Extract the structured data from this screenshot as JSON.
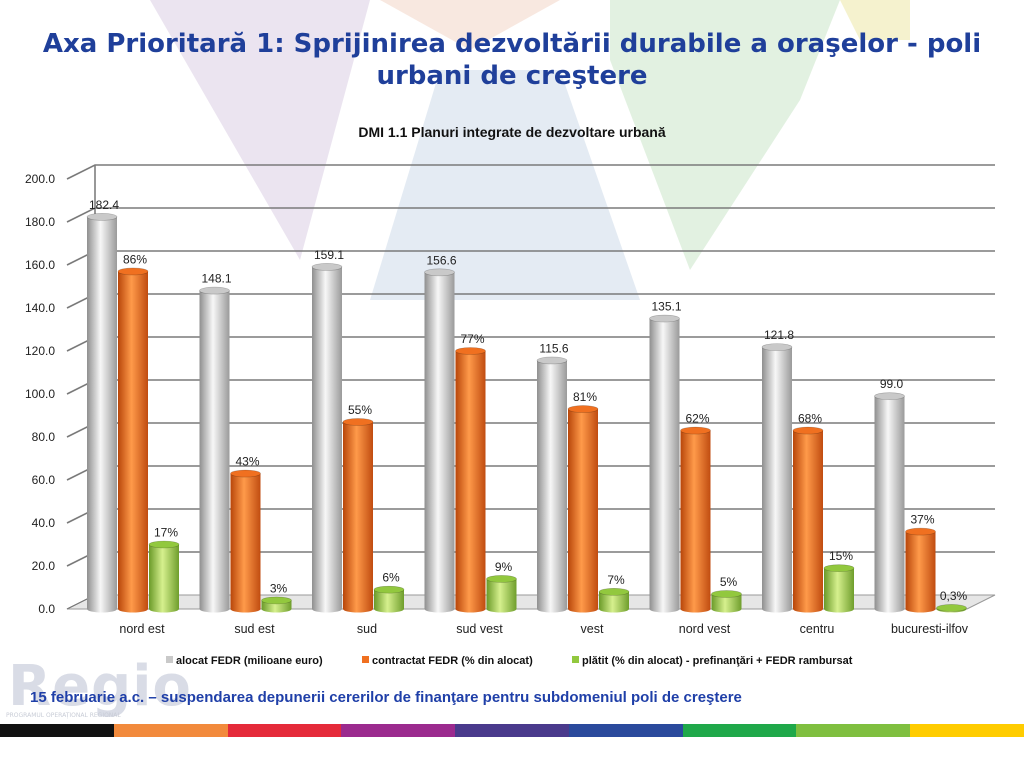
{
  "slide": {
    "title": "Axa Prioritară 1: Sprijinirea dezvoltării durabile a oraşelor - poli urbani de creştere",
    "footer_note": "15 februarie a.c. – suspendarea depunerii cererilor de finanţare pentru subdomeniul poli de creştere",
    "logo_text": "Regio",
    "logo_subtext": "PROGRAMUL OPERAȚIONAL REGIONAL",
    "strip_colors": [
      "#111111",
      "#f28a3c",
      "#e52a3a",
      "#9b2a8e",
      "#4a3a8c",
      "#2a4a9c",
      "#1fa84a",
      "#7fbf3f",
      "#ffcc00"
    ]
  },
  "chart_data": {
    "type": "bar",
    "title": "DMI 1.1 Planuri integrate de dezvoltare urbană",
    "categories": [
      "nord est",
      "sud est",
      "sud",
      "sud vest",
      "vest",
      "nord vest",
      "centru",
      "bucuresti-ilfov"
    ],
    "ylim": [
      0,
      200
    ],
    "yticks": [
      "0.0",
      "20.0",
      "40.0",
      "60.0",
      "80.0",
      "100.0",
      "120.0",
      "140.0",
      "160.0",
      "180.0",
      "200.0"
    ],
    "grid": true,
    "legend_position": "bottom",
    "series": [
      {
        "name": "alocat FEDR (milioane euro)",
        "color": "#c9c9c9",
        "values": [
          182.4,
          148.1,
          159.1,
          156.6,
          115.6,
          135.1,
          121.8,
          99.0
        ],
        "labels": [
          "182.4",
          "148.1",
          "159.1",
          "156.6",
          "115.6",
          "135.1",
          "121.8",
          "99.0"
        ]
      },
      {
        "name": "contractat FEDR (% din alocat)",
        "color": "#f07020",
        "values": [
          157,
          63,
          87,
          120,
          93,
          83,
          83,
          36
        ],
        "labels": [
          "86%",
          "43%",
          "55%",
          "77%",
          "81%",
          "62%",
          "68%",
          "37%"
        ]
      },
      {
        "name": "plătit (% din alocat) - prefinanţări + FEDR rambursat",
        "color": "#92c83e",
        "values": [
          30,
          4,
          9,
          14,
          8,
          7,
          19,
          0.5
        ],
        "labels": [
          "17%",
          "3%",
          "6%",
          "9%",
          "7%",
          "5%",
          "15%",
          "0,3%"
        ]
      }
    ]
  }
}
